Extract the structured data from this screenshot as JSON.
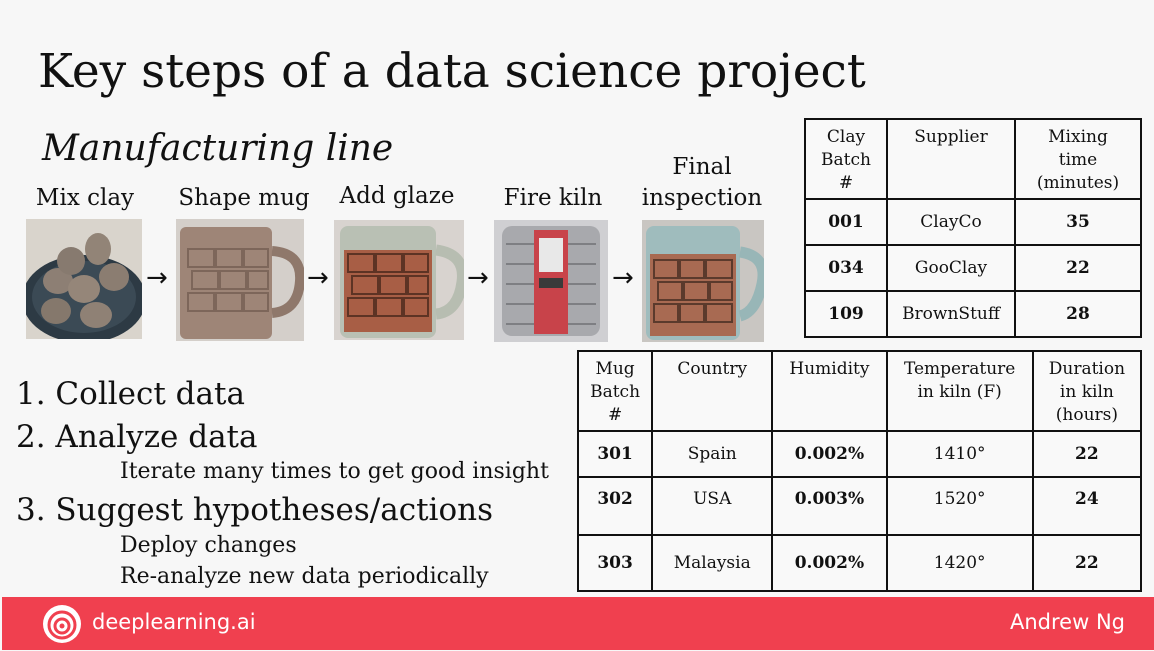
{
  "slide": {
    "title": "Key steps of a data science project",
    "subtitle": "Manufacturing line"
  },
  "pipeline": {
    "steps": [
      {
        "label": "Mix clay"
      },
      {
        "label": "Shape mug"
      },
      {
        "label": "Add glaze"
      },
      {
        "label": "Fire kiln"
      },
      {
        "label_line1": "Final",
        "label_line2": "inspection"
      }
    ],
    "arrow": "→"
  },
  "clay_table": {
    "headers": [
      [
        "Clay",
        "Batch",
        "#"
      ],
      [
        "Supplier"
      ],
      [
        "Mixing",
        "time",
        "(minutes)"
      ]
    ],
    "rows": [
      [
        "001",
        "ClayCo",
        "35"
      ],
      [
        "034",
        "GooClay",
        "22"
      ],
      [
        "109",
        "BrownStuff",
        "28"
      ]
    ]
  },
  "mug_table": {
    "headers": [
      [
        "Mug",
        "Batch",
        "#"
      ],
      [
        "Country"
      ],
      [
        "Humidity"
      ],
      [
        "Temperature",
        "in kiln (F)"
      ],
      [
        "Duration",
        "in kiln",
        "(hours)"
      ]
    ],
    "rows": [
      [
        "301",
        "Spain",
        "0.002%",
        "1410°",
        "22"
      ],
      [
        "302",
        "USA",
        "0.003%",
        "1520°",
        "24"
      ],
      [
        "303",
        "Malaysia",
        "0.002%",
        "1420°",
        "22"
      ]
    ]
  },
  "steps_list": {
    "item1": "1.  Collect data",
    "item2": "2.  Analyze data",
    "item2_sub": "Iterate many times to get good insight",
    "item3": "3.  Suggest hypotheses/actions",
    "item3_sub1": "Deploy changes",
    "item3_sub2": "Re-analyze new data periodically"
  },
  "footer": {
    "brand": "deeplearning.ai",
    "author": "Andrew Ng",
    "color": "#f0404f"
  }
}
